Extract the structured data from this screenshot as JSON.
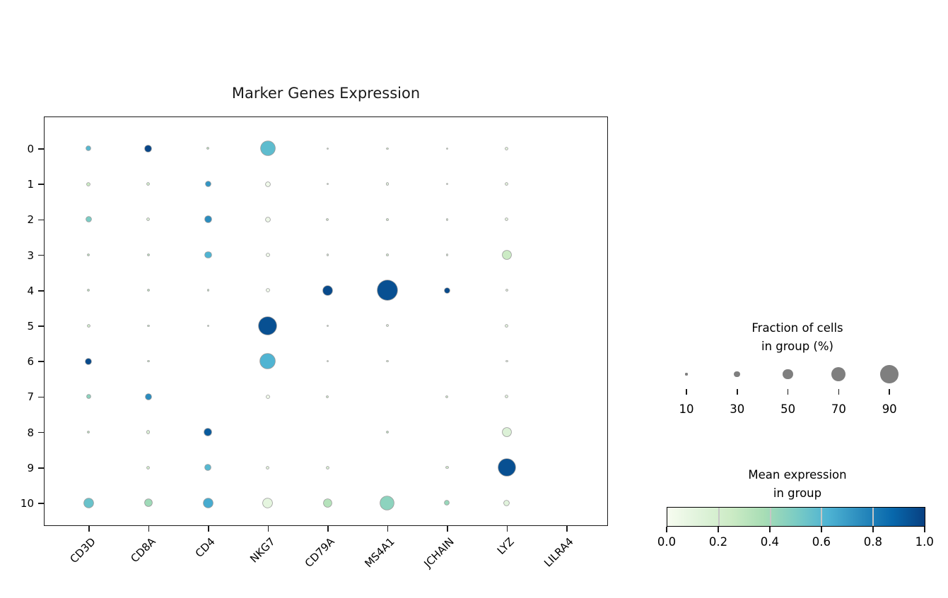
{
  "title": "Marker Genes Expression",
  "chart_data": {
    "type": "scatter",
    "subtype": "dotplot",
    "title": "Marker Genes Expression",
    "x_categories": [
      "CD3D",
      "CD8A",
      "CD4",
      "NKG7",
      "CD79A",
      "MS4A1",
      "JCHAIN",
      "LYZ",
      "LILRA4"
    ],
    "y_categories": [
      "0",
      "1",
      "2",
      "3",
      "4",
      "5",
      "6",
      "7",
      "8",
      "9",
      "10"
    ],
    "cell_value_format": "[fraction_of_cells_pct, mean_expression_0_to_1]",
    "cells": [
      [
        [
          20,
          0.6
        ],
        [
          30,
          0.98
        ],
        [
          5,
          0.3
        ],
        [
          70,
          0.58
        ],
        [
          4,
          0.25
        ],
        [
          4,
          0.25
        ],
        [
          4,
          0.25
        ],
        [
          9,
          0.1
        ],
        null
      ],
      [
        [
          12,
          0.25
        ],
        [
          9,
          0.2
        ],
        [
          23,
          0.72
        ],
        [
          20,
          0.03
        ],
        [
          4,
          0.2
        ],
        [
          7,
          0.1
        ],
        [
          4,
          0.2
        ],
        [
          9,
          0.1
        ],
        null
      ],
      [
        [
          23,
          0.5
        ],
        [
          9,
          0.15
        ],
        [
          30,
          0.75
        ],
        [
          20,
          0.05
        ],
        [
          5,
          0.2
        ],
        [
          4,
          0.2
        ],
        [
          4,
          0.2
        ],
        [
          9,
          0.1
        ],
        null
      ],
      [
        [
          5,
          0.3
        ],
        [
          5,
          0.3
        ],
        [
          30,
          0.62
        ],
        [
          12,
          0.03
        ],
        [
          4,
          0.2
        ],
        [
          4,
          0.2
        ],
        [
          4,
          0.2
        ],
        [
          41,
          0.25
        ],
        null
      ],
      [
        [
          5,
          0.3
        ],
        [
          5,
          0.3
        ],
        [
          4,
          0.3
        ],
        [
          12,
          0.03
        ],
        [
          45,
          0.97
        ],
        [
          98,
          0.95
        ],
        [
          23,
          0.97
        ],
        [
          5,
          0.1
        ],
        null
      ],
      [
        [
          9,
          0.2
        ],
        [
          4,
          0.3
        ],
        [
          4,
          0.3
        ],
        [
          88,
          0.95
        ],
        [
          4,
          0.2
        ],
        [
          5,
          0.1
        ],
        null,
        [
          9,
          0.1
        ],
        null
      ],
      [
        [
          27,
          0.97
        ],
        [
          4,
          0.3
        ],
        null,
        [
          73,
          0.62
        ],
        [
          4,
          0.2
        ],
        [
          4,
          0.2
        ],
        null,
        [
          4,
          0.1
        ],
        null
      ],
      [
        [
          16,
          0.45
        ],
        [
          27,
          0.75
        ],
        null,
        [
          12,
          0.03
        ],
        [
          5,
          0.2
        ],
        null,
        [
          5,
          0.2
        ],
        [
          9,
          0.1
        ],
        null
      ],
      [
        [
          5,
          0.3
        ],
        [
          9,
          0.15
        ],
        [
          34,
          0.92
        ],
        null,
        null,
        [
          5,
          0.3
        ],
        null,
        [
          41,
          0.15
        ],
        null
      ],
      [
        null,
        [
          9,
          0.2
        ],
        [
          27,
          0.6
        ],
        [
          9,
          0.1
        ],
        [
          9,
          0.15
        ],
        null,
        [
          7,
          0.2
        ],
        [
          84,
          0.95
        ],
        null
      ],
      [
        [
          45,
          0.55
        ],
        [
          34,
          0.4
        ],
        [
          45,
          0.65
        ],
        [
          45,
          0.1
        ],
        [
          38,
          0.33
        ],
        [
          66,
          0.45
        ],
        [
          20,
          0.42
        ],
        [
          23,
          0.12
        ],
        null
      ]
    ],
    "size_legend": {
      "title_line1": "Fraction of cells",
      "title_line2": "in group (%)",
      "values": [
        10,
        30,
        50,
        70,
        90
      ],
      "dot_color": "#7f7f7f"
    },
    "colorbar": {
      "title_line1": "Mean expression",
      "title_line2": "in group",
      "tick_labels": [
        "0.0",
        "0.2",
        "0.4",
        "0.6",
        "0.8",
        "1.0"
      ],
      "range": [
        0.0,
        1.0
      ],
      "colormap": "GnBu",
      "stops": [
        [
          0.0,
          "#f7fcf0"
        ],
        [
          0.125,
          "#e0f3db"
        ],
        [
          0.25,
          "#ccebc5"
        ],
        [
          0.375,
          "#a8ddb5"
        ],
        [
          0.5,
          "#7bccc4"
        ],
        [
          0.625,
          "#4eb3d3"
        ],
        [
          0.75,
          "#2b8cbe"
        ],
        [
          0.875,
          "#0868ac"
        ],
        [
          1.0,
          "#084081"
        ]
      ]
    },
    "layout": {
      "grid": false,
      "x_tick_rotation_deg": 45,
      "legend_position": "right"
    }
  }
}
